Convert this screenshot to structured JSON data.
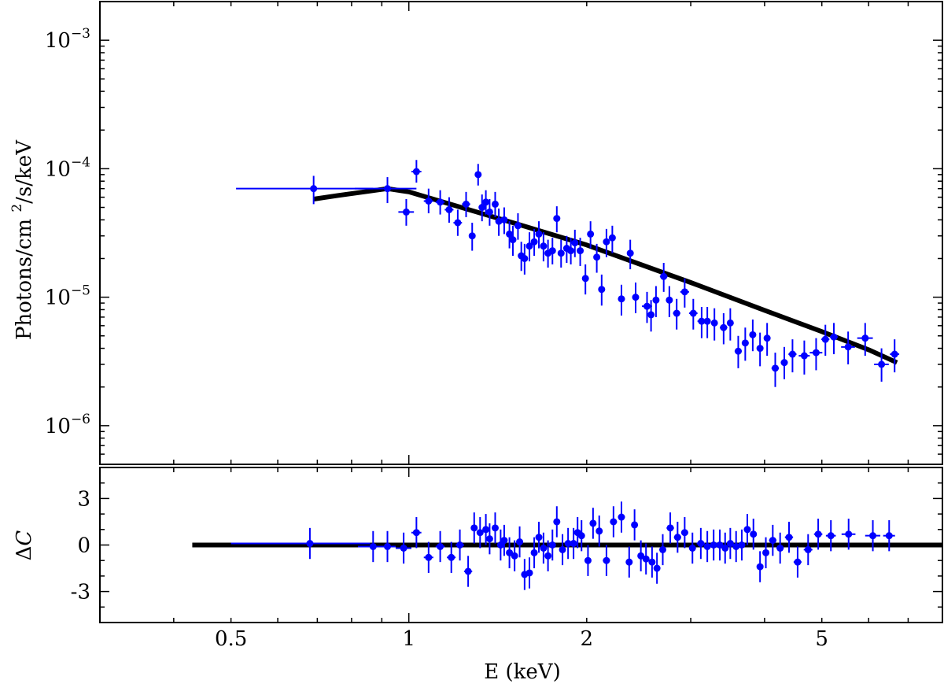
{
  "chart_data": [
    {
      "type": "scatter",
      "panel": "spectrum",
      "ylabel": "Photons/cm²/s/keV",
      "xscale": "log",
      "yscale": "log",
      "xlim": [
        0.3,
        8.0
      ],
      "ylim": [
        5e-07,
        0.002
      ],
      "y_ticks": [
        {
          "value": 1e-06,
          "base": "10",
          "exp": "−6"
        },
        {
          "value": 1e-05,
          "base": "10",
          "exp": "−5"
        },
        {
          "value": 0.0001,
          "base": "10",
          "exp": "−4"
        },
        {
          "value": 0.001,
          "base": "10",
          "exp": "−3"
        }
      ],
      "colors": {
        "data": "#0000ff",
        "model": "#000000"
      },
      "series": [
        {
          "kind": "data",
          "x": [
            0.69,
            0.92,
            0.99,
            1.03,
            1.08,
            1.13,
            1.17,
            1.21,
            1.25,
            1.28,
            1.31,
            1.33,
            1.35,
            1.37,
            1.4,
            1.42,
            1.45,
            1.48,
            1.5,
            1.53,
            1.55,
            1.57,
            1.6,
            1.63,
            1.66,
            1.69,
            1.72,
            1.75,
            1.78,
            1.81,
            1.85,
            1.88,
            1.91,
            1.95,
            1.99,
            2.03,
            2.08,
            2.12,
            2.16,
            2.21,
            2.29,
            2.37,
            2.42,
            2.53,
            2.57,
            2.62,
            2.7,
            2.76,
            2.84,
            2.93,
            3.03,
            3.13,
            3.2,
            3.29,
            3.41,
            3.5,
            3.61,
            3.71,
            3.82,
            3.93,
            4.04,
            4.17,
            4.32,
            4.46,
            4.67,
            4.89,
            5.07,
            5.24,
            5.54,
            5.92,
            6.31,
            6.64
          ],
          "xerr": [
            0.18,
            0.11,
            0.03,
            0.02,
            0.02,
            0.02,
            0.02,
            0.02,
            0.02,
            0.01,
            0.01,
            0.01,
            0.01,
            0.01,
            0.01,
            0.01,
            0.01,
            0.01,
            0.01,
            0.01,
            0.01,
            0.01,
            0.01,
            0.01,
            0.02,
            0.01,
            0.01,
            0.01,
            0.02,
            0.02,
            0.02,
            0.02,
            0.02,
            0.02,
            0.02,
            0.02,
            0.02,
            0.02,
            0.02,
            0.02,
            0.03,
            0.03,
            0.03,
            0.05,
            0.02,
            0.02,
            0.04,
            0.03,
            0.04,
            0.05,
            0.05,
            0.05,
            0.02,
            0.03,
            0.05,
            0.04,
            0.05,
            0.05,
            0.05,
            0.05,
            0.05,
            0.06,
            0.06,
            0.07,
            0.1,
            0.12,
            0.08,
            0.08,
            0.15,
            0.18,
            0.18,
            0.12
          ],
          "y": [
            7e-05,
            7e-05,
            4.6e-05,
            9.5e-05,
            5.6e-05,
            5.5e-05,
            4.8e-05,
            3.8e-05,
            5.3e-05,
            3e-05,
            9e-05,
            5e-05,
            5.5e-05,
            4.6e-05,
            5.3e-05,
            3.9e-05,
            4e-05,
            3.1e-05,
            2.8e-05,
            3.6e-05,
            2.1e-05,
            2e-05,
            2.5e-05,
            2.7e-05,
            3.1e-05,
            2.5e-05,
            2.2e-05,
            2.3e-05,
            4.1e-05,
            2.2e-05,
            2.4e-05,
            2.3e-05,
            2.65e-05,
            2.3e-05,
            1.4e-05,
            3.1e-05,
            2.05e-05,
            1.15e-05,
            2.7e-05,
            2.9e-05,
            9.7e-06,
            2.2e-05,
            1e-05,
            8.5e-06,
            7.3e-06,
            9.5e-06,
            1.45e-05,
            9.5e-06,
            7.5e-06,
            1.1e-05,
            7.5e-06,
            6.5e-06,
            6.5e-06,
            6.3e-06,
            5.8e-06,
            6.3e-06,
            3.8e-06,
            4.4e-06,
            5.1e-06,
            4e-06,
            4.8e-06,
            2.8e-06,
            3.1e-06,
            3.6e-06,
            3.5e-06,
            3.7e-06,
            4.7e-06,
            4.9e-06,
            4.1e-06,
            4.8e-06,
            3e-06,
            3.6e-06
          ],
          "ylo": [
            5.3e-05,
            5.4e-05,
            3.6e-05,
            7.8e-05,
            4.5e-05,
            4.4e-05,
            3.8e-05,
            3e-05,
            4.2e-05,
            2.3e-05,
            7.4e-05,
            3.9e-05,
            4.4e-05,
            3.6e-05,
            4.2e-05,
            3e-05,
            3.1e-05,
            2.4e-05,
            2.1e-05,
            2.8e-05,
            1.6e-05,
            1.5e-05,
            1.9e-05,
            2.1e-05,
            2.4e-05,
            1.9e-05,
            1.7e-05,
            1.8e-05,
            3.2e-05,
            1.7e-05,
            1.85e-05,
            1.8e-05,
            2.05e-05,
            1.75e-05,
            1.05e-05,
            2.4e-05,
            1.55e-05,
            8.6e-06,
            2.05e-05,
            2.2e-05,
            7.2e-06,
            1.65e-05,
            7.5e-06,
            6.3e-06,
            5.4e-06,
            7e-06,
            1.1e-05,
            7e-06,
            5.6e-06,
            8.3e-06,
            5.6e-06,
            4.8e-06,
            4.8e-06,
            4.6e-06,
            4.3e-06,
            4.6e-06,
            2.8e-06,
            3.2e-06,
            3.8e-06,
            2.9e-06,
            3.5e-06,
            2e-06,
            2.3e-06,
            2.6e-06,
            2.5e-06,
            2.7e-06,
            3.5e-06,
            3.6e-06,
            3e-06,
            3.5e-06,
            2.2e-06,
            2.6e-06
          ],
          "yhi": [
            8.8e-05,
            8.6e-05,
            5.8e-05,
            0.000117,
            7e-05,
            6.8e-05,
            6e-05,
            4.8e-05,
            6.6e-05,
            3.8e-05,
            0.000109,
            6.3e-05,
            6.8e-05,
            5.8e-05,
            6.6e-05,
            4.9e-05,
            5e-05,
            3.9e-05,
            3.6e-05,
            4.5e-05,
            2.7e-05,
            2.6e-05,
            3.2e-05,
            3.4e-05,
            3.9e-05,
            3.2e-05,
            2.8e-05,
            2.9e-05,
            5.1e-05,
            2.8e-05,
            3e-05,
            2.9e-05,
            3.35e-05,
            2.9e-05,
            1.8e-05,
            3.9e-05,
            2.6e-05,
            1.5e-05,
            3.4e-05,
            3.6e-05,
            1.25e-05,
            2.8e-05,
            1.3e-05,
            1.1e-05,
            9.5e-06,
            1.22e-05,
            1.85e-05,
            1.22e-05,
            9.7e-06,
            1.4e-05,
            9.7e-06,
            8.4e-06,
            8.4e-06,
            8.2e-06,
            7.5e-06,
            8.2e-06,
            5e-06,
            5.8e-06,
            6.7e-06,
            5.3e-06,
            6.3e-06,
            3.7e-06,
            4.1e-06,
            4.7e-06,
            4.6e-06,
            4.8e-06,
            6.1e-06,
            6.3e-06,
            5.4e-06,
            6.3e-06,
            4e-06,
            4.7e-06
          ]
        },
        {
          "kind": "model",
          "x": [
            0.69,
            0.76,
            0.84,
            0.92,
            1.0,
            1.5,
            2.0,
            3.0,
            4.0,
            5.0,
            6.0,
            6.7
          ],
          "y": [
            5.8e-05,
            6.2e-05,
            6.6e-05,
            7e-05,
            6.6e-05,
            3.8e-05,
            2.55e-05,
            1.3e-05,
            7.9e-06,
            5.4e-06,
            3.9e-06,
            3.1e-06
          ]
        }
      ]
    },
    {
      "type": "scatter",
      "panel": "residuals",
      "xlabel": "E (keV)",
      "ylabel_symbol": "Δ",
      "ylabel_var": "C",
      "xscale": "log",
      "xlim": [
        0.3,
        8.0
      ],
      "ylim": [
        -5,
        5
      ],
      "y_ticks": [
        {
          "value": -3,
          "label": "-3"
        },
        {
          "value": 0,
          "label": "0"
        },
        {
          "value": 3,
          "label": "3"
        }
      ],
      "x_ticks": [
        {
          "value": 0.5,
          "label": "0.5"
        },
        {
          "value": 1,
          "label": "1"
        },
        {
          "value": 2,
          "label": "2"
        },
        {
          "value": 5,
          "label": "5"
        }
      ],
      "colors": {
        "data": "#0000ff",
        "model": "#000000"
      },
      "series": [
        {
          "kind": "data",
          "x": [
            0.68,
            0.87,
            0.92,
            0.98,
            1.03,
            1.08,
            1.13,
            1.18,
            1.22,
            1.26,
            1.29,
            1.32,
            1.35,
            1.37,
            1.4,
            1.43,
            1.45,
            1.48,
            1.51,
            1.54,
            1.57,
            1.6,
            1.63,
            1.66,
            1.69,
            1.72,
            1.75,
            1.78,
            1.82,
            1.86,
            1.9,
            1.93,
            1.96,
            2.01,
            2.05,
            2.1,
            2.16,
            2.22,
            2.29,
            2.36,
            2.41,
            2.47,
            2.52,
            2.58,
            2.63,
            2.69,
            2.77,
            2.85,
            2.93,
            3.02,
            3.12,
            3.2,
            3.28,
            3.36,
            3.43,
            3.5,
            3.58,
            3.66,
            3.74,
            3.83,
            3.93,
            4.02,
            4.13,
            4.25,
            4.4,
            4.55,
            4.74,
            4.93,
            5.18,
            5.55,
            6.1,
            6.5
          ],
          "xerr": [
            0.18,
            0.05,
            0.03,
            0.03,
            0.02,
            0.02,
            0.02,
            0.02,
            0.02,
            0.02,
            0.01,
            0.01,
            0.01,
            0.01,
            0.01,
            0.01,
            0.01,
            0.01,
            0.01,
            0.01,
            0.01,
            0.01,
            0.01,
            0.01,
            0.01,
            0.01,
            0.01,
            0.01,
            0.02,
            0.02,
            0.02,
            0.02,
            0.02,
            0.02,
            0.02,
            0.02,
            0.03,
            0.03,
            0.03,
            0.03,
            0.03,
            0.03,
            0.03,
            0.03,
            0.03,
            0.03,
            0.04,
            0.04,
            0.04,
            0.04,
            0.05,
            0.04,
            0.04,
            0.04,
            0.04,
            0.04,
            0.04,
            0.04,
            0.05,
            0.05,
            0.05,
            0.05,
            0.06,
            0.06,
            0.07,
            0.07,
            0.08,
            0.08,
            0.1,
            0.15,
            0.18,
            0.15
          ],
          "y": [
            0.1,
            -0.1,
            -0.1,
            -0.2,
            0.8,
            -0.8,
            -0.1,
            -0.8,
            0.0,
            -1.7,
            1.1,
            0.8,
            1.0,
            0.4,
            1.1,
            0.0,
            0.3,
            -0.5,
            -0.7,
            0.2,
            -1.9,
            -1.8,
            -0.5,
            0.5,
            -0.2,
            -0.7,
            0.0,
            1.5,
            -0.3,
            0.1,
            0.1,
            0.8,
            0.6,
            -1.0,
            1.4,
            0.9,
            -1.0,
            1.5,
            1.8,
            -1.1,
            1.3,
            -0.7,
            -0.9,
            -1.1,
            -1.5,
            -0.3,
            1.1,
            0.5,
            0.8,
            -0.2,
            0.1,
            -0.1,
            0.0,
            0.0,
            -0.2,
            0.1,
            -0.1,
            0.0,
            1.0,
            0.7,
            -1.4,
            -0.5,
            0.3,
            -0.2,
            0.5,
            -1.1,
            -0.3,
            0.7,
            0.6,
            0.7,
            0.6,
            0.6
          ],
          "yerr": [
            1.0,
            1.0,
            1.0,
            1.0,
            1.0,
            1.0,
            1.0,
            1.0,
            1.0,
            1.0,
            1.0,
            1.0,
            1.0,
            1.0,
            1.0,
            1.0,
            1.0,
            1.0,
            1.0,
            1.0,
            1.0,
            1.0,
            1.0,
            1.0,
            1.0,
            1.0,
            1.0,
            1.0,
            1.0,
            1.0,
            1.0,
            1.0,
            1.0,
            1.0,
            1.0,
            1.0,
            1.0,
            1.0,
            1.0,
            1.0,
            1.0,
            1.0,
            1.0,
            1.0,
            1.0,
            1.0,
            1.0,
            1.0,
            1.0,
            1.0,
            1.0,
            1.0,
            1.0,
            1.0,
            1.0,
            1.0,
            1.0,
            1.0,
            1.0,
            1.0,
            1.0,
            1.0,
            1.0,
            1.0,
            1.0,
            1.0,
            1.0,
            1.0,
            1.0,
            1.0,
            1.0,
            1.0
          ]
        },
        {
          "kind": "model",
          "x": [
            0.43,
            8.0
          ],
          "y": [
            0,
            0
          ]
        }
      ]
    }
  ]
}
